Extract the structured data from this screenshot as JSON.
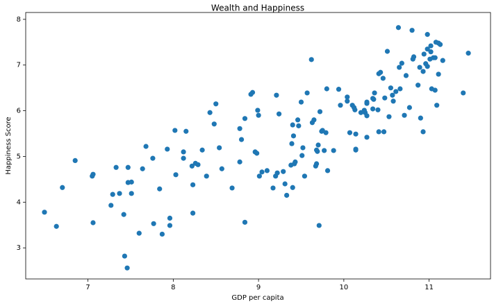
{
  "chart_data": {
    "type": "scatter",
    "title": "Wealth and Happiness",
    "x_label": "GDP per capita",
    "y_label": "Happiness Score",
    "series": [
      {
        "color": "#1f77b4",
        "x": [
          6.49,
          6.63,
          6.7,
          6.85,
          7.06,
          7.05,
          7.06,
          7.33,
          7.29,
          7.37,
          7.27,
          7.42,
          7.47,
          7.47,
          7.51,
          7.51,
          7.43,
          7.46,
          7.64,
          7.6,
          7.68,
          7.76,
          7.77,
          7.84,
          7.87,
          7.93,
          7.96,
          7.96,
          8.02,
          8.03,
          8.12,
          8.12,
          8.15,
          8.22,
          8.26,
          8.29,
          8.23,
          8.23,
          8.34,
          8.39,
          8.43,
          8.48,
          8.5,
          8.54,
          8.57,
          8.69,
          8.78,
          8.78,
          8.8,
          8.84,
          8.91,
          8.93,
          8.84,
          8.96,
          8.98,
          8.99,
          9.0,
          9.01,
          9.04,
          9.1,
          9.17,
          9.2,
          9.21,
          9.22,
          9.24,
          9.29,
          9.31,
          9.33,
          9.38,
          9.4,
          9.39,
          9.4,
          9.41,
          9.42,
          9.43,
          9.46,
          9.47,
          9.51,
          9.52,
          9.5,
          9.57,
          9.54,
          9.62,
          9.63,
          9.65,
          9.67,
          9.68,
          9.68,
          9.69,
          9.7,
          9.74,
          9.75,
          9.77,
          9.72,
          9.79,
          9.8,
          9.81,
          9.88,
          9.94,
          9.96,
          9.71,
          10.04,
          10.04,
          10.07,
          10.1,
          10.12,
          10.13,
          10.14,
          10.14,
          10.14,
          10.2,
          10.24,
          10.25,
          10.27,
          10.27,
          10.27,
          10.27,
          10.34,
          10.35,
          10.36,
          10.34,
          10.4,
          10.41,
          10.41,
          10.43,
          10.46,
          10.47,
          10.48,
          10.53,
          10.51,
          10.55,
          10.57,
          10.58,
          10.61,
          10.64,
          10.65,
          10.66,
          10.68,
          10.71,
          10.73,
          10.77,
          10.8,
          10.81,
          10.82,
          10.87,
          10.93,
          10.9,
          10.94,
          10.98,
          10.96,
          10.98,
          11.01,
          11.02,
          11.02,
          11.03,
          11.05,
          11.07,
          11.07,
          11.11,
          11.13,
          10.98,
          10.93,
          10.89,
          11.08,
          11.16,
          11.11,
          11.09,
          11.4,
          11.46
        ],
        "y": [
          3.78,
          3.47,
          4.32,
          4.91,
          4.61,
          4.57,
          3.55,
          4.76,
          4.17,
          4.19,
          3.93,
          3.73,
          4.76,
          4.43,
          4.44,
          4.19,
          2.82,
          2.56,
          4.73,
          3.32,
          5.22,
          4.96,
          3.53,
          4.29,
          3.3,
          5.16,
          3.65,
          3.49,
          5.57,
          4.6,
          5.1,
          4.96,
          5.55,
          4.79,
          4.85,
          4.82,
          4.38,
          3.76,
          5.14,
          4.57,
          5.96,
          5.71,
          6.15,
          5.19,
          4.73,
          4.31,
          5.61,
          4.88,
          5.37,
          5.83,
          6.36,
          6.4,
          3.56,
          5.1,
          5.07,
          6.01,
          5.9,
          4.57,
          4.66,
          4.69,
          4.31,
          4.57,
          6.34,
          4.64,
          5.93,
          4.67,
          4.4,
          4.15,
          4.81,
          4.32,
          5.28,
          5.69,
          5.45,
          4.84,
          4.88,
          5.8,
          5.67,
          5.02,
          5.19,
          6.19,
          6.39,
          4.57,
          7.12,
          5.74,
          5.8,
          4.79,
          4.84,
          5.14,
          5.11,
          5.25,
          5.55,
          5.57,
          5.13,
          5.98,
          5.52,
          6.48,
          4.69,
          5.13,
          6.47,
          6.12,
          3.49,
          6.3,
          6.21,
          5.52,
          6.12,
          6.07,
          6.02,
          5.14,
          5.16,
          5.49,
          5.96,
          6.01,
          5.96,
          5.42,
          6.19,
          6.16,
          5.89,
          6.27,
          6.25,
          6.39,
          6.04,
          6.02,
          5.54,
          6.81,
          6.84,
          6.71,
          5.54,
          6.28,
          5.87,
          7.3,
          6.5,
          6.34,
          6.21,
          6.42,
          7.82,
          6.95,
          6.48,
          7.04,
          5.9,
          6.77,
          6.07,
          7.76,
          7.13,
          7.18,
          6.56,
          6.86,
          5.84,
          7.24,
          6.97,
          7.03,
          7.35,
          7.13,
          7.29,
          7.42,
          6.48,
          7.16,
          7.16,
          6.45,
          7.48,
          7.45,
          7.67,
          5.54,
          6.95,
          7.5,
          7.1,
          6.8,
          6.12,
          6.39,
          7.26
        ]
      }
    ],
    "xlim": [
      6.27,
      11.72
    ],
    "ylim": [
      2.32,
      8.15
    ],
    "xticks": [
      7,
      8,
      9,
      10,
      11
    ],
    "yticks": [
      3,
      4,
      5,
      6,
      7,
      8
    ],
    "grid": false
  }
}
